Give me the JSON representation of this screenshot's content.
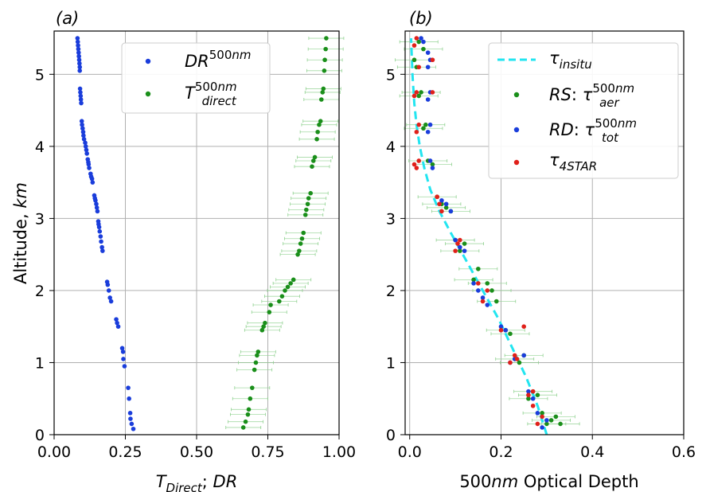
{
  "chart_data": [
    {
      "panel": "(a)",
      "type": "scatter",
      "title": "(a)",
      "xlabel": "T_Direct; DR",
      "ylabel": "Altitude, km",
      "xlim": [
        0.0,
        1.0
      ],
      "ylim": [
        0.0,
        5.6
      ],
      "xticks": [
        "0.00",
        "0.25",
        "0.50",
        "0.75",
        "1.00"
      ],
      "yticks": [
        "0",
        "1",
        "2",
        "3",
        "4",
        "5"
      ],
      "grid": true,
      "legend_position": "upper-center",
      "series": [
        {
          "name": "DR^500nm",
          "color": "#1a3ddb",
          "x": [
            0.278,
            0.272,
            0.268,
            0.267,
            0.263,
            0.26,
            0.247,
            0.243,
            0.242,
            0.239,
            0.225,
            0.221,
            0.218,
            0.2,
            0.196,
            0.192,
            0.188,
            0.186,
            0.17,
            0.168,
            0.165,
            0.163,
            0.16,
            0.158,
            0.156,
            0.155,
            0.152,
            0.15,
            0.148,
            0.145,
            0.143,
            0.141,
            0.135,
            0.133,
            0.13,
            0.128,
            0.123,
            0.121,
            0.12,
            0.118,
            0.115,
            0.113,
            0.111,
            0.109,
            0.105,
            0.103,
            0.102,
            0.1,
            0.098,
            0.097,
            0.095,
            0.094,
            0.093,
            0.092,
            0.091,
            0.09,
            0.09,
            0.089,
            0.088,
            0.087,
            0.086,
            0.085,
            0.084,
            0.083,
            0.082
          ],
          "y": [
            0.08,
            0.15,
            0.22,
            0.3,
            0.5,
            0.65,
            0.95,
            1.05,
            1.15,
            1.2,
            1.5,
            1.55,
            1.6,
            1.85,
            1.9,
            2.0,
            2.08,
            2.12,
            2.55,
            2.6,
            2.68,
            2.75,
            2.82,
            2.88,
            2.92,
            2.96,
            3.1,
            3.15,
            3.2,
            3.25,
            3.28,
            3.32,
            3.5,
            3.55,
            3.58,
            3.62,
            3.7,
            3.75,
            3.78,
            3.82,
            3.9,
            3.95,
            4.0,
            4.05,
            4.1,
            4.15,
            4.2,
            4.25,
            4.3,
            4.35,
            4.6,
            4.65,
            4.7,
            4.75,
            4.8,
            5.05,
            5.1,
            5.15,
            5.2,
            5.25,
            5.3,
            5.35,
            5.4,
            5.45,
            5.5
          ]
        },
        {
          "name": "T_direct^500nm",
          "color": "#1a8f1a",
          "x": [
            0.664,
            0.672,
            0.68,
            0.683,
            0.688,
            0.695,
            0.703,
            0.708,
            0.712,
            0.716,
            0.73,
            0.735,
            0.74,
            0.755,
            0.76,
            0.79,
            0.8,
            0.81,
            0.82,
            0.83,
            0.84,
            0.855,
            0.86,
            0.865,
            0.87,
            0.875,
            0.882,
            0.885,
            0.89,
            0.893,
            0.9,
            0.905,
            0.91,
            0.915,
            0.922,
            0.925,
            0.93,
            0.935,
            0.938,
            0.942,
            0.945,
            0.948,
            0.95,
            0.953,
            0.955
          ],
          "y": [
            0.1,
            0.18,
            0.28,
            0.35,
            0.5,
            0.65,
            0.9,
            1.0,
            1.1,
            1.15,
            1.45,
            1.5,
            1.55,
            1.7,
            1.8,
            1.85,
            1.92,
            2.0,
            2.05,
            2.1,
            2.15,
            2.5,
            2.55,
            2.65,
            2.72,
            2.8,
            3.05,
            3.12,
            3.2,
            3.28,
            3.35,
            3.72,
            3.8,
            3.85,
            4.1,
            4.2,
            4.3,
            4.35,
            4.65,
            4.75,
            4.8,
            5.05,
            5.2,
            5.35,
            5.5
          ]
        }
      ]
    },
    {
      "panel": "(b)",
      "type": "scatter",
      "title": "(b)",
      "xlabel": "500nm Optical Depth",
      "ylabel": "",
      "xlim": [
        -0.01,
        0.6
      ],
      "ylim": [
        0.0,
        5.6
      ],
      "xticks": [
        "0.0",
        "0.2",
        "0.4",
        "0.6"
      ],
      "yticks": [
        "0",
        "1",
        "2",
        "3",
        "4",
        "5"
      ],
      "grid": true,
      "legend_position": "upper-right",
      "series": [
        {
          "name": "τ_insitu",
          "type": "line",
          "style": "dashed",
          "color": "#22e5f0",
          "x": [
            0.3,
            0.28,
            0.255,
            0.225,
            0.195,
            0.16,
            0.125,
            0.09,
            0.065,
            0.045,
            0.032,
            0.022,
            0.015,
            0.01,
            0.006,
            0.003
          ],
          "y": [
            0.0,
            0.4,
            0.8,
            1.2,
            1.6,
            2.0,
            2.4,
            2.8,
            3.1,
            3.4,
            3.7,
            4.0,
            4.3,
            4.6,
            5.0,
            5.5
          ]
        },
        {
          "name": "RS: τ_aer^500nm",
          "color": "#1a8f1a",
          "x": [
            0.3,
            0.31,
            0.32,
            0.33,
            0.29,
            0.27,
            0.26,
            0.28,
            0.24,
            0.25,
            0.23,
            0.22,
            0.21,
            0.19,
            0.18,
            0.17,
            0.15,
            0.14,
            0.12,
            0.1,
            0.11,
            0.09,
            0.08,
            0.07,
            0.06,
            0.05,
            0.04,
            0.03,
            0.035,
            0.02,
            0.025,
            0.015,
            0.01,
            0.03,
            0.02
          ],
          "y": [
            0.15,
            0.2,
            0.25,
            0.15,
            0.3,
            0.6,
            0.5,
            0.55,
            1.0,
            1.1,
            1.05,
            1.4,
            1.45,
            1.85,
            2.0,
            2.1,
            2.3,
            2.15,
            2.65,
            2.7,
            2.55,
            3.1,
            3.15,
            3.2,
            3.3,
            3.75,
            3.8,
            4.25,
            4.3,
            4.7,
            4.75,
            5.1,
            5.2,
            5.35,
            5.45
          ]
        },
        {
          "name": "RD: τ_tot^500nm",
          "color": "#1a3ddb",
          "x": [
            0.29,
            0.3,
            0.28,
            0.27,
            0.26,
            0.25,
            0.22,
            0.23,
            0.21,
            0.2,
            0.17,
            0.16,
            0.15,
            0.14,
            0.12,
            0.11,
            0.1,
            0.09,
            0.08,
            0.07,
            0.05,
            0.045,
            0.04,
            0.045,
            0.04,
            0.045,
            0.04,
            0.045,
            0.04,
            0.03,
            0.025
          ],
          "y": [
            0.1,
            0.2,
            0.3,
            0.5,
            0.6,
            1.1,
            1.0,
            1.05,
            1.45,
            1.5,
            1.8,
            1.9,
            2.0,
            2.1,
            2.55,
            2.6,
            2.7,
            3.1,
            3.2,
            3.25,
            3.7,
            3.8,
            4.2,
            4.3,
            4.65,
            4.75,
            5.1,
            5.2,
            5.3,
            5.45,
            5.5
          ]
        },
        {
          "name": "τ_4STAR",
          "color": "#e0201a",
          "x": [
            0.28,
            0.29,
            0.27,
            0.26,
            0.27,
            0.22,
            0.23,
            0.235,
            0.2,
            0.25,
            0.16,
            0.17,
            0.15,
            0.1,
            0.105,
            0.11,
            0.07,
            0.065,
            0.06,
            0.015,
            0.02,
            0.01,
            0.015,
            0.02,
            0.01,
            0.05,
            0.015,
            0.02,
            0.05,
            0.01,
            0.015
          ],
          "y": [
            0.15,
            0.25,
            0.4,
            0.55,
            0.6,
            1.0,
            1.1,
            1.05,
            1.45,
            1.5,
            1.85,
            2.0,
            2.1,
            2.55,
            2.65,
            2.7,
            3.1,
            3.2,
            3.3,
            3.7,
            3.8,
            3.75,
            4.2,
            4.3,
            4.7,
            4.75,
            4.75,
            5.1,
            5.2,
            5.4,
            5.5
          ]
        }
      ]
    }
  ]
}
